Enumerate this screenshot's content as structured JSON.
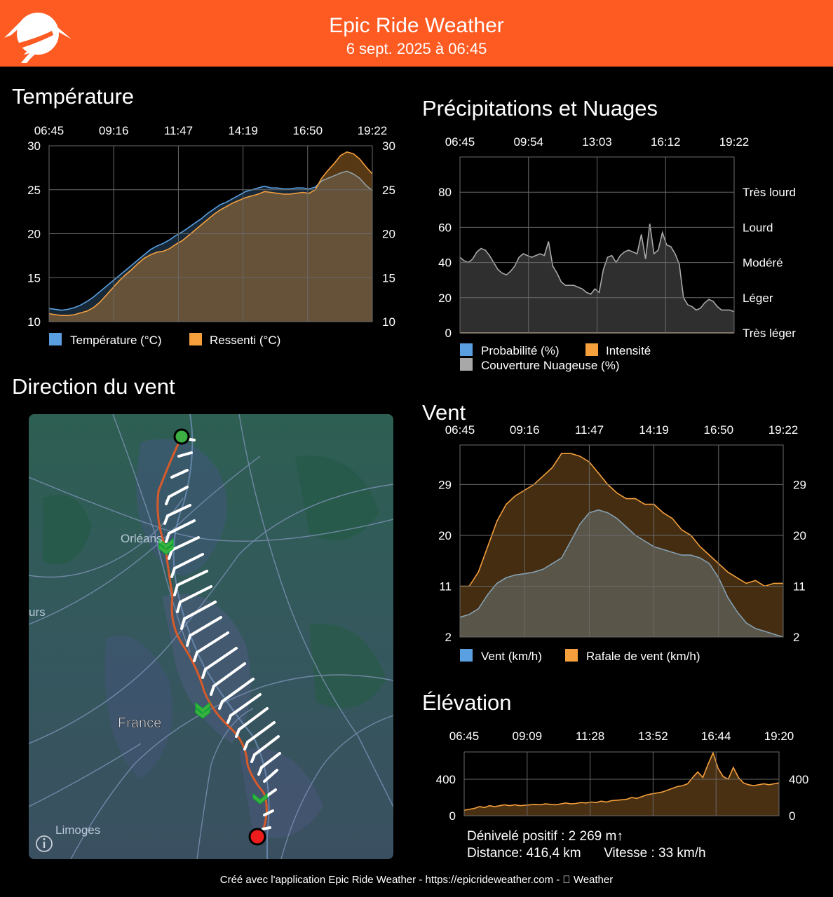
{
  "header": {
    "app_title": "Epic Ride Weather",
    "date": "6 sept. 2025 à 06:45",
    "logo_icon": "mountain-road-logo-icon",
    "color": "#fe5b23"
  },
  "temperature": {
    "title": "Température",
    "chart_data": {
      "type": "area",
      "title": "Température",
      "x": [
        "06:45",
        "07:00",
        "07:15",
        "07:30",
        "07:45",
        "08:00",
        "08:15",
        "08:30",
        "08:45",
        "09:00",
        "09:15",
        "09:30",
        "09:45",
        "10:00",
        "10:15",
        "10:30",
        "10:45",
        "11:00",
        "11:15",
        "11:30",
        "11:45",
        "12:00",
        "12:15",
        "12:30",
        "12:45",
        "13:00",
        "13:15",
        "13:30",
        "13:45",
        "14:00",
        "14:15",
        "14:30",
        "14:45",
        "15:00",
        "15:15",
        "15:30",
        "15:45",
        "16:00",
        "16:15",
        "16:30",
        "16:45",
        "17:00",
        "17:15",
        "17:30",
        "17:45",
        "18:00",
        "18:15",
        "18:30",
        "18:45",
        "19:00",
        "19:15",
        "19:22"
      ],
      "time_ticks": [
        "06:45",
        "09:16",
        "11:47",
        "14:19",
        "16:50",
        "19:22"
      ],
      "ylim": [
        10,
        30
      ],
      "y_ticks": [
        10,
        15,
        20,
        25,
        30
      ],
      "series": [
        {
          "name": "Température (°C)",
          "color": "#5aa0e0",
          "values": [
            11.5,
            11.4,
            11.3,
            11.4,
            11.6,
            11.9,
            12.3,
            12.8,
            13.4,
            14.0,
            14.6,
            15.2,
            15.8,
            16.4,
            17.0,
            17.6,
            18.2,
            18.6,
            18.9,
            19.3,
            19.8,
            20.2,
            20.7,
            21.2,
            21.7,
            22.3,
            22.8,
            23.3,
            23.6,
            24.0,
            24.4,
            24.8,
            25.0,
            25.2,
            25.4,
            25.2,
            25.2,
            25.1,
            25.1,
            25.2,
            25.2,
            25.1,
            25.3,
            26.0,
            26.3,
            26.6,
            26.9,
            27.1,
            26.8,
            26.3,
            25.5,
            24.9
          ]
        },
        {
          "name": "Ressenti (°C)",
          "color": "#f5a03c",
          "values": [
            10.9,
            10.8,
            10.7,
            10.7,
            10.8,
            11.0,
            11.2,
            11.6,
            12.2,
            13.0,
            13.8,
            14.6,
            15.3,
            15.9,
            16.6,
            17.2,
            17.6,
            17.9,
            18.0,
            18.3,
            18.8,
            19.2,
            19.8,
            20.4,
            21.0,
            21.6,
            22.2,
            22.7,
            23.1,
            23.5,
            23.8,
            24.1,
            24.3,
            24.5,
            24.8,
            24.7,
            24.6,
            24.5,
            24.5,
            24.6,
            24.7,
            24.6,
            25.0,
            26.3,
            27.2,
            28.0,
            28.9,
            29.3,
            29.1,
            28.5,
            27.6,
            26.8
          ]
        }
      ]
    }
  },
  "precip": {
    "title": "Précipitations et Nuages",
    "chart_data": {
      "type": "area",
      "title": "Précipitations et Nuages",
      "time_ticks": [
        "06:45",
        "09:54",
        "13:03",
        "16:12",
        "19:22"
      ],
      "ylim": [
        0,
        100
      ],
      "y_ticks": [
        0,
        20,
        40,
        60,
        80
      ],
      "intensity_levels": [
        "Très léger",
        "Léger",
        "Modéré",
        "Lourd",
        "Très lourd"
      ],
      "series": [
        {
          "name": "Probabilité (%)",
          "color": "#5aa0e0",
          "values": [
            0,
            0,
            0,
            0,
            0,
            0,
            0,
            0,
            0,
            0,
            0,
            0,
            0,
            0,
            0,
            0,
            0,
            0,
            0,
            0,
            0,
            0,
            0,
            0,
            0,
            0,
            0,
            0,
            0,
            0,
            0,
            0,
            0,
            0,
            0,
            0,
            0,
            0,
            0,
            0,
            0,
            0,
            0,
            0,
            0,
            0,
            0,
            0,
            0,
            0,
            0,
            0,
            0,
            0,
            0,
            0,
            0,
            0,
            0,
            0,
            0,
            0,
            0,
            0,
            0,
            0
          ]
        },
        {
          "name": "Intensité",
          "color": "#f5a03c",
          "values": [
            0,
            0,
            0,
            0,
            0,
            0,
            0,
            0,
            0,
            0,
            0,
            0,
            0,
            0,
            0,
            0,
            0,
            0,
            0,
            0,
            0,
            0,
            0,
            0,
            0,
            0,
            0,
            0,
            0,
            0,
            0,
            0,
            0,
            0,
            0,
            0,
            0,
            0,
            0,
            0,
            0,
            0,
            0,
            0,
            0,
            0,
            0,
            0,
            0,
            0,
            0,
            0,
            0,
            0,
            0,
            0,
            0,
            0,
            0,
            0,
            0,
            0,
            0,
            0,
            0,
            0
          ]
        },
        {
          "name": "Couverture Nuageuse (%)",
          "color": "#a8a8a8",
          "values": [
            43,
            41,
            40,
            42,
            46,
            48,
            47,
            44,
            40,
            36,
            34,
            33,
            35,
            38,
            43,
            45,
            44,
            43,
            44,
            45,
            44,
            52,
            38,
            34,
            29,
            27,
            27,
            27,
            26,
            25,
            23,
            22,
            25,
            23,
            36,
            43,
            44,
            40,
            44,
            46,
            47,
            46,
            45,
            56,
            42,
            62,
            45,
            47,
            57,
            50,
            49,
            45,
            39,
            20,
            16,
            15,
            13,
            14,
            17,
            19,
            18,
            15,
            13,
            13,
            13,
            12
          ]
        }
      ]
    }
  },
  "wind_map": {
    "title": "Direction du vent",
    "labels": {
      "orleans": "Orléans",
      "tours_partial": "urs",
      "france": "France",
      "limoges": "Limoges"
    },
    "info_icon": "info-icon",
    "start_color": "#3cb043",
    "end_color": "#ee1c1c",
    "route_color": "#d75a2a"
  },
  "wind": {
    "title": "Vent",
    "chart_data": {
      "type": "area",
      "title": "Vent",
      "time_ticks": [
        "06:45",
        "09:16",
        "11:47",
        "14:19",
        "16:50",
        "19:22"
      ],
      "ylim": [
        2,
        36
      ],
      "y_ticks": [
        2,
        11,
        20,
        29
      ],
      "series": [
        {
          "name": "Vent (km/h)",
          "color": "#5aa0e0",
          "values": [
            5.5,
            6,
            7,
            9.5,
            11.5,
            12.5,
            13,
            13.2,
            13.5,
            14,
            15,
            16,
            19,
            22,
            24,
            24.5,
            24,
            23,
            21.5,
            20,
            19,
            18,
            17.5,
            17,
            16.5,
            16.5,
            16,
            15,
            12.5,
            9,
            6.5,
            4.5,
            3.5,
            3,
            2.5,
            2
          ]
        },
        {
          "name": "Rafale de vent (km/h)",
          "color": "#f5a03c",
          "values": [
            11,
            11,
            13.5,
            18,
            22.5,
            25.5,
            27,
            28,
            29,
            30.5,
            32,
            34.5,
            34.5,
            34,
            33,
            31,
            29,
            27.5,
            26.5,
            26.5,
            25.5,
            25.5,
            24,
            23,
            21,
            20,
            18,
            16.5,
            15,
            13.5,
            12.5,
            11.5,
            12,
            11,
            11.5,
            11.5
          ]
        }
      ]
    }
  },
  "elevation": {
    "title": "Élévation",
    "chart_data": {
      "type": "area",
      "title": "Élévation",
      "time_ticks": [
        "06:45",
        "09:09",
        "11:28",
        "13:52",
        "16:44",
        "19:20"
      ],
      "ylim": [
        0,
        700
      ],
      "y_ticks": [
        0,
        400
      ],
      "series": [
        {
          "name": "",
          "color": "#f5a03c",
          "values": [
            60,
            70,
            80,
            100,
            90,
            110,
            100,
            110,
            120,
            110,
            120,
            110,
            115,
            120,
            125,
            120,
            130,
            125,
            120,
            130,
            140,
            130,
            135,
            145,
            140,
            150,
            145,
            160,
            150,
            165,
            170,
            175,
            180,
            200,
            190,
            210,
            230,
            240,
            250,
            260,
            280,
            300,
            320,
            330,
            350,
            420,
            480,
            420,
            560,
            690,
            520,
            430,
            400,
            530,
            420,
            360,
            340,
            330,
            340,
            350,
            340,
            350,
            360
          ]
        }
      ]
    },
    "stats": {
      "elevation_gain": "Dénivelé positif : 2 269 m↑",
      "distance": "Distance: 416,4 km",
      "speed": "Vitesse : 33 km/h"
    }
  },
  "footer": {
    "text": "Créé avec l'application Epic Ride Weather - https://epicrideweather.com -  Weather"
  }
}
